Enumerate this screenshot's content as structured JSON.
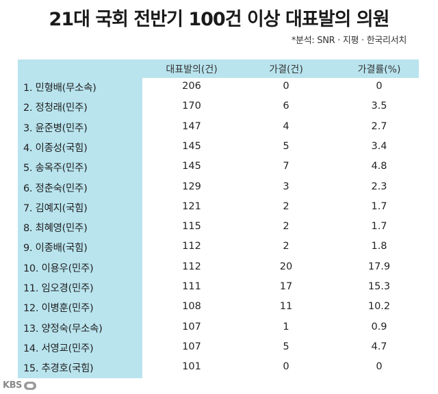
{
  "title": "21대 국회 전반기 100건 이상 대표발의 의원",
  "source": "*분석: SNR · 지평 · 한국리서치",
  "logo": "KBS",
  "table": {
    "headers": [
      "대표발의(건)",
      "가결(건)",
      "가결률(%)"
    ],
    "rows": [
      {
        "name": "1. 민형배(무소속)",
        "bills": "206",
        "passed": "0",
        "rate": "0"
      },
      {
        "name": "2. 정청래(민주)",
        "bills": "170",
        "passed": "6",
        "rate": "3.5"
      },
      {
        "name": "3. 윤준병(민주)",
        "bills": "147",
        "passed": "4",
        "rate": "2.7"
      },
      {
        "name": "4. 이종성(국힘)",
        "bills": "145",
        "passed": "5",
        "rate": "3.4"
      },
      {
        "name": "5. 송옥주(민주)",
        "bills": "145",
        "passed": "7",
        "rate": "4.8"
      },
      {
        "name": "6. 정춘숙(민주)",
        "bills": "129",
        "passed": "3",
        "rate": "2.3"
      },
      {
        "name": "7. 김예지(국힘)",
        "bills": "121",
        "passed": "2",
        "rate": "1.7"
      },
      {
        "name": "8. 최혜영(민주)",
        "bills": "115",
        "passed": "2",
        "rate": "1.7"
      },
      {
        "name": "9. 이종배(국힘)",
        "bills": "112",
        "passed": "2",
        "rate": "1.8"
      },
      {
        "name": "10. 이용우(민주)",
        "bills": "112",
        "passed": "20",
        "rate": "17.9"
      },
      {
        "name": "11. 임오경(민주)",
        "bills": "111",
        "passed": "17",
        "rate": "15.3"
      },
      {
        "name": "12. 이병훈(민주)",
        "bills": "108",
        "passed": "11",
        "rate": "10.2"
      },
      {
        "name": "13. 양정숙(무소속)",
        "bills": "107",
        "passed": "1",
        "rate": "0.9"
      },
      {
        "name": "14. 서영교(민주)",
        "bills": "107",
        "passed": "5",
        "rate": "4.7"
      },
      {
        "name": "15. 추경호(국힘)",
        "bills": "101",
        "passed": "0",
        "rate": "0"
      }
    ]
  }
}
